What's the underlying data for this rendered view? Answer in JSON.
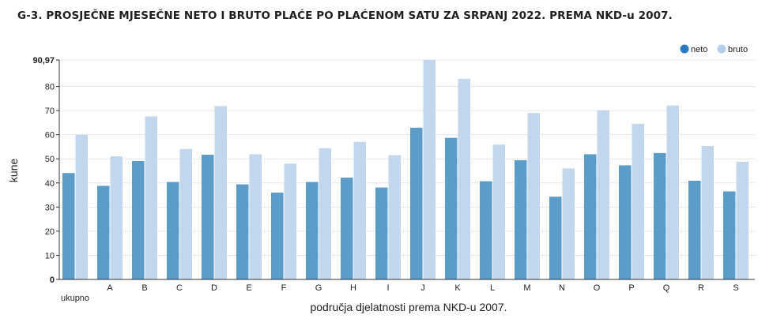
{
  "title": "G-3. PROSJEČNE MJESEČNE NETO I BRUTO PLAĆE PO PLAĆENOM SATU ZA SRPANJ 2022. PREMA NKD-u 2007.",
  "colors": {
    "neto": "#5b9cc8",
    "bruto": "#c2d7ee",
    "legend_neto": "#2c7bbd",
    "legend_bruto": "#b4cdeb",
    "grid": "#e6e6e6",
    "axis": "#333333"
  },
  "chart_data": {
    "type": "bar",
    "title": "G-3. PROSJEČNE MJESEČNE NETO I BRUTO PLAĆE PO PLAĆENOM SATU ZA SRPANJ 2022. PREMA NKD-u 2007.",
    "xlabel": "područja djelatnosti prema NKD-u 2007.",
    "ylabel": "kune",
    "ylim": [
      0,
      90.97
    ],
    "yticks": [
      "0",
      "10",
      "20",
      "30",
      "40",
      "50",
      "60",
      "70",
      "80",
      "90,97"
    ],
    "grid": true,
    "legend_position": "top-right",
    "categories": [
      "ukupno",
      "A",
      "B",
      "C",
      "D",
      "E",
      "F",
      "G",
      "H",
      "I",
      "J",
      "K",
      "L",
      "M",
      "N",
      "O",
      "P",
      "Q",
      "R",
      "S"
    ],
    "series": [
      {
        "name": "neto",
        "values": [
          44.1,
          38.8,
          49.1,
          40.4,
          51.7,
          39.4,
          36.0,
          40.4,
          42.2,
          38.1,
          62.9,
          58.7,
          40.7,
          49.4,
          34.3,
          51.9,
          47.3,
          52.4,
          40.9,
          36.5
        ]
      },
      {
        "name": "bruto",
        "values": [
          60.0,
          51.0,
          67.6,
          54.1,
          71.9,
          51.9,
          48.0,
          54.4,
          57.0,
          51.5,
          90.97,
          83.2,
          55.9,
          69.0,
          46.0,
          70.1,
          64.5,
          72.1,
          55.3,
          48.8
        ]
      }
    ]
  }
}
